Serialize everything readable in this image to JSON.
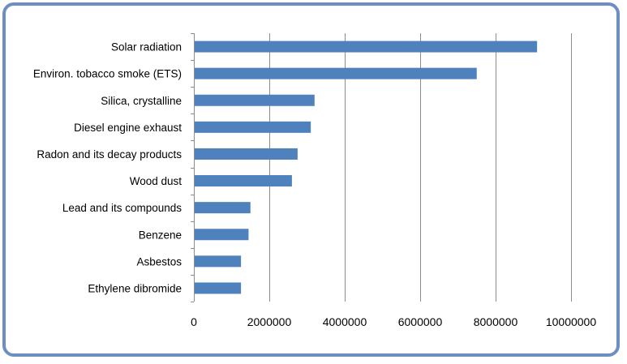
{
  "colors": {
    "bar": "#4f81bd",
    "gridline": "#8c8c8c",
    "frame_border": "#6d8ec0",
    "background": "#ffffff"
  },
  "chart_data": {
    "type": "bar",
    "orientation": "horizontal",
    "title": "",
    "xlabel": "",
    "ylabel": "",
    "categories": [
      "Solar radiation",
      "Environ. tobacco smoke (ETS)",
      "Silica, crystalline",
      "Diesel engine exhaust",
      "Radon and its decay products",
      "Wood dust",
      "Lead and its compounds",
      "Benzene",
      "Asbestos",
      "Ethylene dibromide"
    ],
    "values": [
      9100000,
      7500000,
      3200000,
      3100000,
      2750000,
      2600000,
      1500000,
      1450000,
      1250000,
      1250000
    ],
    "xlim": [
      0,
      10000000
    ],
    "x_ticks": [
      0,
      2000000,
      4000000,
      6000000,
      8000000,
      10000000
    ],
    "x_tick_labels": [
      "0",
      "2000000",
      "4000000",
      "6000000",
      "8000000",
      "10000000"
    ],
    "grid": "vertical",
    "legend": "none"
  }
}
